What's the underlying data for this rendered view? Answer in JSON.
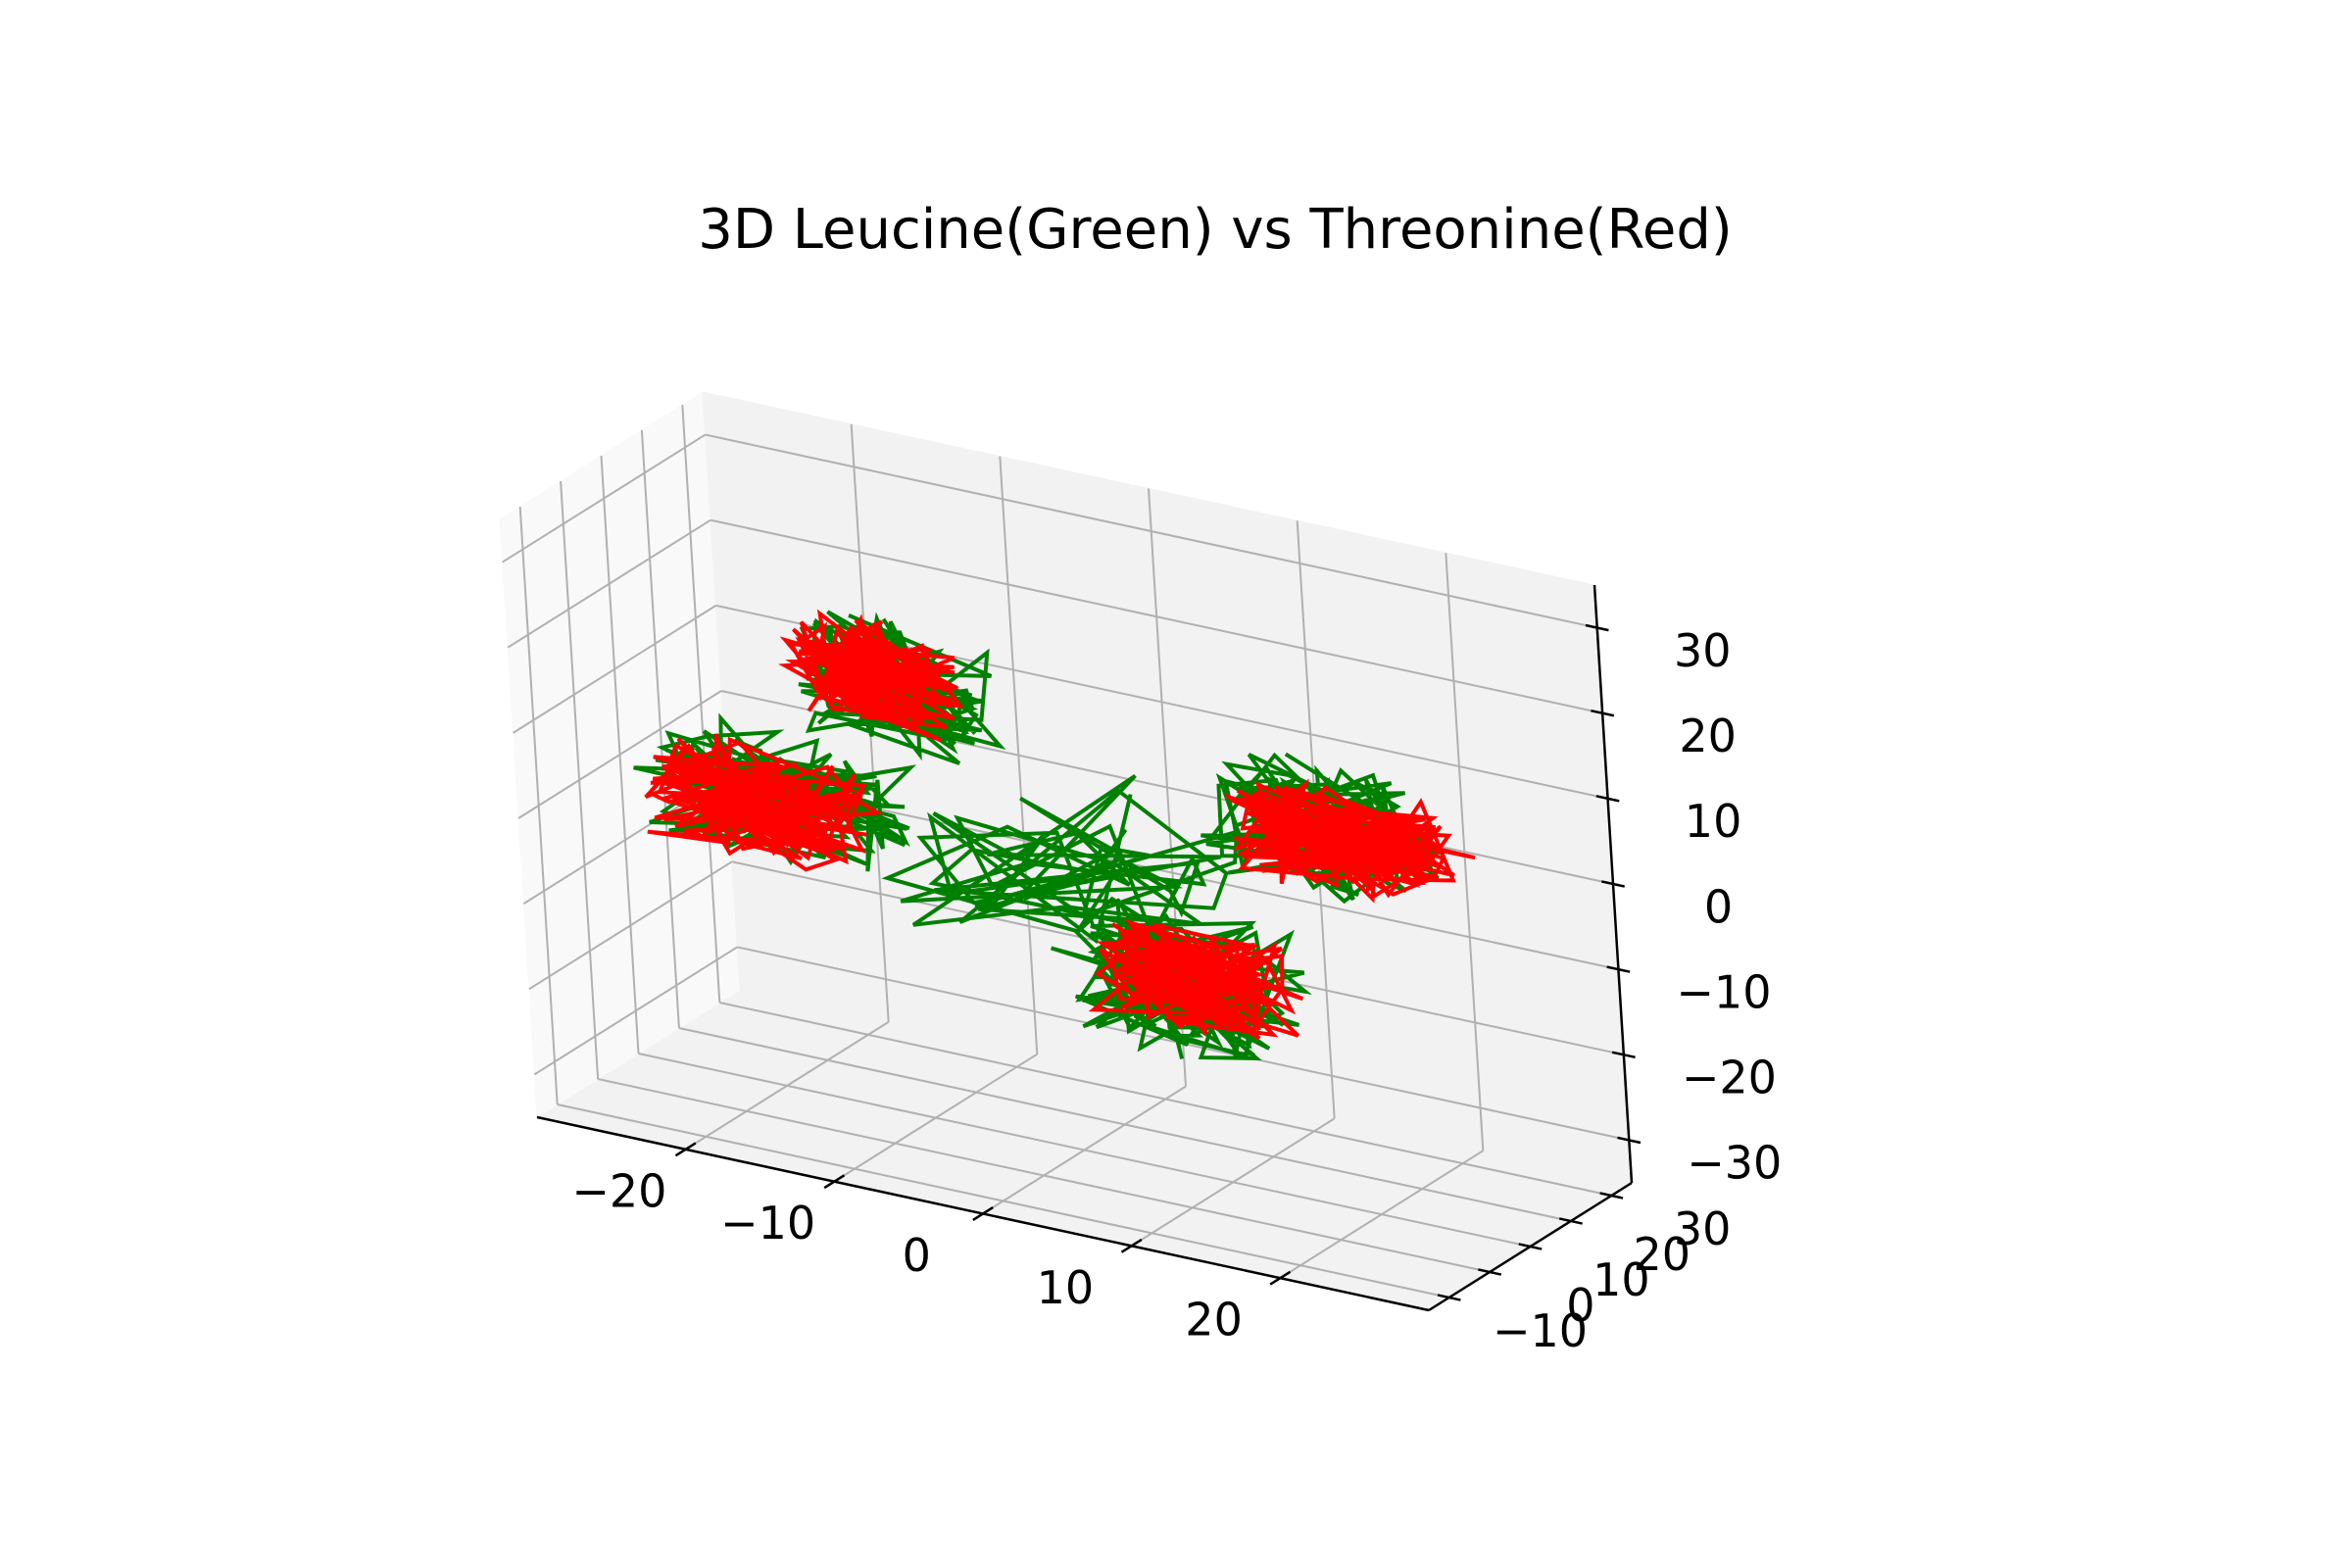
{
  "chart_data": {
    "type": "line",
    "projection": "3d",
    "title": "3D Leucine(Green) vs Threonine(Red)",
    "xlabel": "",
    "ylabel": "",
    "zlabel": "",
    "xlim": [
      -30,
      30
    ],
    "ylim": [
      -15,
      35
    ],
    "zlim": [
      -35,
      35
    ],
    "x_ticks": [
      -20,
      -10,
      0,
      10,
      20
    ],
    "y_ticks": [
      -10,
      0,
      10,
      20,
      30
    ],
    "z_ticks": [
      -30,
      -20,
      -10,
      0,
      10,
      20,
      30
    ],
    "x_tick_labels": [
      "−20",
      "−10",
      "0",
      "10",
      "20"
    ],
    "y_tick_labels": [
      "−10",
      "0",
      "10",
      "20",
      "30"
    ],
    "z_tick_labels": [
      "−30",
      "−20",
      "−10",
      "0",
      "10",
      "20",
      "30"
    ],
    "grid": true,
    "legend": "none",
    "series": [
      {
        "color": "#008000",
        "clusters": [
          {
            "x": [
              -22,
              -10
            ],
            "y": [
              22,
              34
            ],
            "z": [
              2,
              14
            ]
          },
          {
            "x": [
              8,
              22
            ],
            "y": [
              10,
              26
            ],
            "z": [
              0,
              12
            ]
          },
          {
            "x": [
              -24,
              -8
            ],
            "y": [
              -10,
              4
            ],
            "z": [
              -2,
              10
            ]
          },
          {
            "x": [
              4,
              18
            ],
            "y": [
              -12,
              4
            ],
            "z": [
              -14,
              0
            ]
          }
        ],
        "bridge": {
          "x": [
            -10,
            10
          ],
          "y": [
            -5,
            25
          ],
          "z": [
            -10,
            5
          ]
        }
      },
      {
        "color": "#ff0000",
        "clusters": [
          {
            "x": [
              -22,
              -12
            ],
            "y": [
              22,
              32
            ],
            "z": [
              4,
              14
            ]
          },
          {
            "x": [
              10,
              24
            ],
            "y": [
              12,
              24
            ],
            "z": [
              0,
              10
            ]
          },
          {
            "x": [
              -24,
              -10
            ],
            "y": [
              -8,
              4
            ],
            "z": [
              -2,
              8
            ]
          },
          {
            "x": [
              6,
              18
            ],
            "y": [
              -8,
              2
            ],
            "z": [
              -12,
              -2
            ]
          }
        ]
      }
    ]
  }
}
